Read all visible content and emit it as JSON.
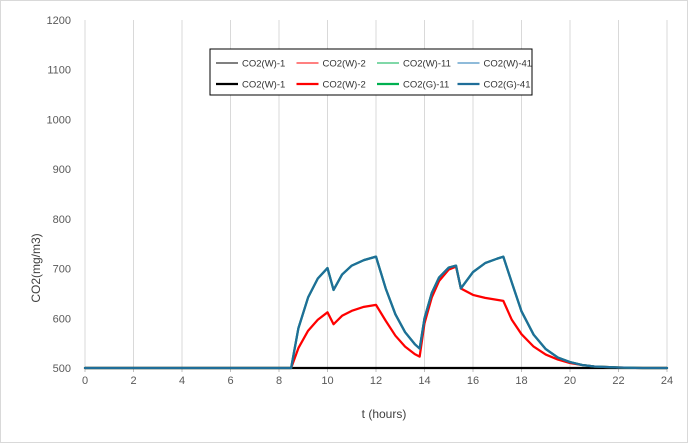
{
  "chart_data": {
    "type": "line",
    "xlabel": "t (hours)",
    "ylabel": "CO2(mg/m3)",
    "xlim": [
      0,
      24
    ],
    "ylim": [
      500,
      1200
    ],
    "xticks": [
      0,
      2,
      4,
      6,
      8,
      10,
      12,
      14,
      16,
      18,
      20,
      22,
      24
    ],
    "yticks": [
      500,
      600,
      700,
      800,
      900,
      1000,
      1100,
      1200
    ],
    "grid": "vertical",
    "legend": "top-center",
    "series": [
      {
        "name": "CO2(W)-1",
        "color": "#000000",
        "style": "thin",
        "x": [
          0,
          24
        ],
        "y": [
          500,
          500
        ]
      },
      {
        "name": "CO2(W)-2",
        "color": "#ff0000",
        "style": "thin",
        "x": [
          0,
          8.5,
          8.8,
          9.2,
          9.6,
          10.0,
          10.25,
          10.6,
          11.0,
          11.5,
          12.0,
          12.4,
          12.8,
          13.2,
          13.6,
          13.8,
          14.0,
          14.3,
          14.6,
          15.0,
          15.3,
          15.5,
          16.0,
          16.5,
          17.0,
          17.25,
          17.6,
          18.0,
          18.5,
          19.0,
          19.5,
          20.0,
          20.5,
          21.0,
          22.0,
          23.0,
          24.0
        ],
        "y": [
          500,
          500,
          540,
          575,
          597,
          612,
          588,
          605,
          615,
          623,
          627,
          595,
          565,
          543,
          528,
          523,
          590,
          642,
          675,
          698,
          704,
          660,
          647,
          641,
          637,
          635,
          597,
          568,
          543,
          527,
          517,
          510,
          506,
          503,
          501,
          500,
          500
        ]
      },
      {
        "name": "CO2(W)-11",
        "color": "#00b050",
        "style": "thin",
        "x": [
          0,
          8.5,
          8.8,
          9.2,
          9.6,
          10.0,
          10.25,
          10.6,
          11.0,
          11.5,
          12.0,
          12.4,
          12.8,
          13.2,
          13.6,
          13.8,
          14.0,
          14.3,
          14.6,
          15.0,
          15.3,
          15.5,
          16.0,
          16.5,
          17.0,
          17.25,
          17.6,
          18.0,
          18.5,
          19.0,
          19.5,
          20.0,
          20.5,
          21.0,
          22.0,
          23.0,
          24.0
        ],
        "y": [
          500,
          500,
          580,
          642,
          680,
          701,
          657,
          688,
          706,
          717,
          724,
          660,
          608,
          572,
          548,
          539,
          600,
          651,
          682,
          702,
          706,
          660,
          693,
          711,
          720,
          724,
          672,
          614,
          567,
          538,
          521,
          512,
          506,
          503,
          501,
          500,
          500
        ]
      },
      {
        "name": "CO2(W)-41",
        "color": "#1f77b4",
        "style": "thin",
        "x": [
          0,
          8.5,
          8.8,
          9.2,
          9.6,
          10.0,
          10.25,
          10.6,
          11.0,
          11.5,
          12.0,
          12.4,
          12.8,
          13.2,
          13.6,
          13.8,
          14.0,
          14.3,
          14.6,
          15.0,
          15.3,
          15.5,
          16.0,
          16.5,
          17.0,
          17.25,
          17.6,
          18.0,
          18.5,
          19.0,
          19.5,
          20.0,
          20.5,
          21.0,
          22.0,
          23.0,
          24.0
        ],
        "y": [
          500,
          500,
          580,
          642,
          680,
          701,
          657,
          688,
          706,
          717,
          724,
          660,
          608,
          572,
          548,
          539,
          600,
          651,
          682,
          702,
          706,
          660,
          693,
          711,
          720,
          724,
          672,
          614,
          567,
          538,
          521,
          512,
          506,
          503,
          501,
          500,
          500
        ]
      },
      {
        "name": "CO2(W)-1",
        "color": "#000000",
        "style": "thick",
        "x": [
          0,
          24
        ],
        "y": [
          500,
          500
        ]
      },
      {
        "name": "CO2(W)-2",
        "color": "#ff0000",
        "style": "thick",
        "x": [
          0,
          8.5,
          8.8,
          9.2,
          9.6,
          10.0,
          10.25,
          10.6,
          11.0,
          11.5,
          12.0,
          12.4,
          12.8,
          13.2,
          13.6,
          13.8,
          14.0,
          14.3,
          14.6,
          15.0,
          15.3,
          15.5,
          16.0,
          16.5,
          17.0,
          17.25,
          17.6,
          18.0,
          18.5,
          19.0,
          19.5,
          20.0,
          20.5,
          21.0,
          22.0,
          23.0,
          24.0
        ],
        "y": [
          500,
          500,
          540,
          575,
          597,
          612,
          588,
          605,
          615,
          623,
          627,
          595,
          565,
          543,
          528,
          523,
          590,
          642,
          675,
          698,
          704,
          660,
          647,
          641,
          637,
          635,
          597,
          568,
          543,
          527,
          517,
          510,
          506,
          503,
          501,
          500,
          500
        ]
      },
      {
        "name": "CO2(G)-11",
        "color": "#00b050",
        "style": "thick",
        "x": [
          0,
          8.5,
          8.8,
          9.2,
          9.6,
          10.0,
          10.25,
          10.6,
          11.0,
          11.5,
          12.0,
          12.4,
          12.8,
          13.2,
          13.6,
          13.8,
          14.0,
          14.3,
          14.6,
          15.0,
          15.3,
          15.5,
          16.0,
          16.5,
          17.0,
          17.25,
          17.6,
          18.0,
          18.5,
          19.0,
          19.5,
          20.0,
          20.5,
          21.0,
          22.0,
          23.0,
          24.0
        ],
        "y": [
          500,
          500,
          580,
          642,
          680,
          701,
          657,
          688,
          706,
          717,
          724,
          660,
          608,
          572,
          548,
          539,
          600,
          651,
          682,
          702,
          706,
          660,
          693,
          711,
          720,
          724,
          672,
          614,
          567,
          538,
          521,
          512,
          506,
          503,
          501,
          500,
          500
        ]
      },
      {
        "name": "CO2(G)-41",
        "color": "#1f6e99",
        "style": "thick",
        "x": [
          0,
          8.5,
          8.8,
          9.2,
          9.6,
          10.0,
          10.25,
          10.6,
          11.0,
          11.5,
          12.0,
          12.4,
          12.8,
          13.2,
          13.6,
          13.8,
          14.0,
          14.3,
          14.6,
          15.0,
          15.3,
          15.5,
          16.0,
          16.5,
          17.0,
          17.25,
          17.6,
          18.0,
          18.5,
          19.0,
          19.5,
          20.0,
          20.5,
          21.0,
          22.0,
          23.0,
          24.0
        ],
        "y": [
          500,
          500,
          580,
          642,
          680,
          701,
          657,
          688,
          706,
          717,
          724,
          660,
          608,
          572,
          548,
          539,
          600,
          651,
          682,
          702,
          706,
          660,
          693,
          711,
          720,
          724,
          672,
          614,
          567,
          538,
          521,
          512,
          506,
          503,
          501,
          500,
          500
        ]
      }
    ]
  }
}
